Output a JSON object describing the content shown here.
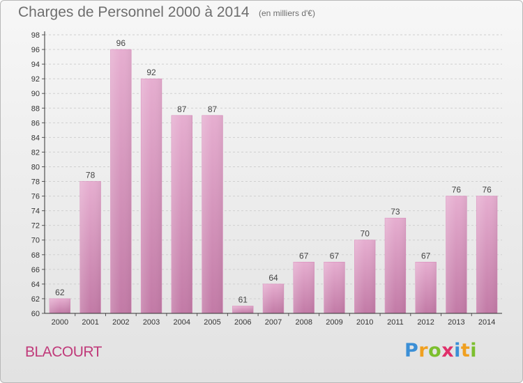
{
  "title": "Charges de Personnel 2000 à 2014",
  "subtitle": "(en milliers d'€)",
  "commune": "BLACOURT",
  "logo": {
    "letters": [
      {
        "ch": "P",
        "color": "#3b8fd6"
      },
      {
        "ch": "r",
        "color": "#f0a020"
      },
      {
        "ch": "o",
        "color": "#7cbf2e"
      },
      {
        "ch": "x",
        "color": "#e0306a"
      },
      {
        "ch": "i",
        "color": "#3b8fd6"
      },
      {
        "ch": "t",
        "color": "#f0a020"
      },
      {
        "ch": "i",
        "color": "#7cbf2e"
      }
    ]
  },
  "colors": {
    "bar": "#d98bbb",
    "bar_light": "#e6aed0",
    "bar_dark": "#c27aa6"
  },
  "chart_data": {
    "type": "bar",
    "title": "Charges de Personnel 2000 à 2014",
    "subtitle": "(en milliers d'€)",
    "categories": [
      "2000",
      "2001",
      "2002",
      "2003",
      "2004",
      "2005",
      "2006",
      "2007",
      "2008",
      "2009",
      "2010",
      "2011",
      "2012",
      "2013",
      "2014"
    ],
    "values": [
      62,
      78,
      96,
      92,
      87,
      87,
      61,
      64,
      67,
      67,
      70,
      73,
      67,
      76,
      76
    ],
    "ylim": [
      60,
      98
    ],
    "ytick_step": 2,
    "grid": true
  }
}
